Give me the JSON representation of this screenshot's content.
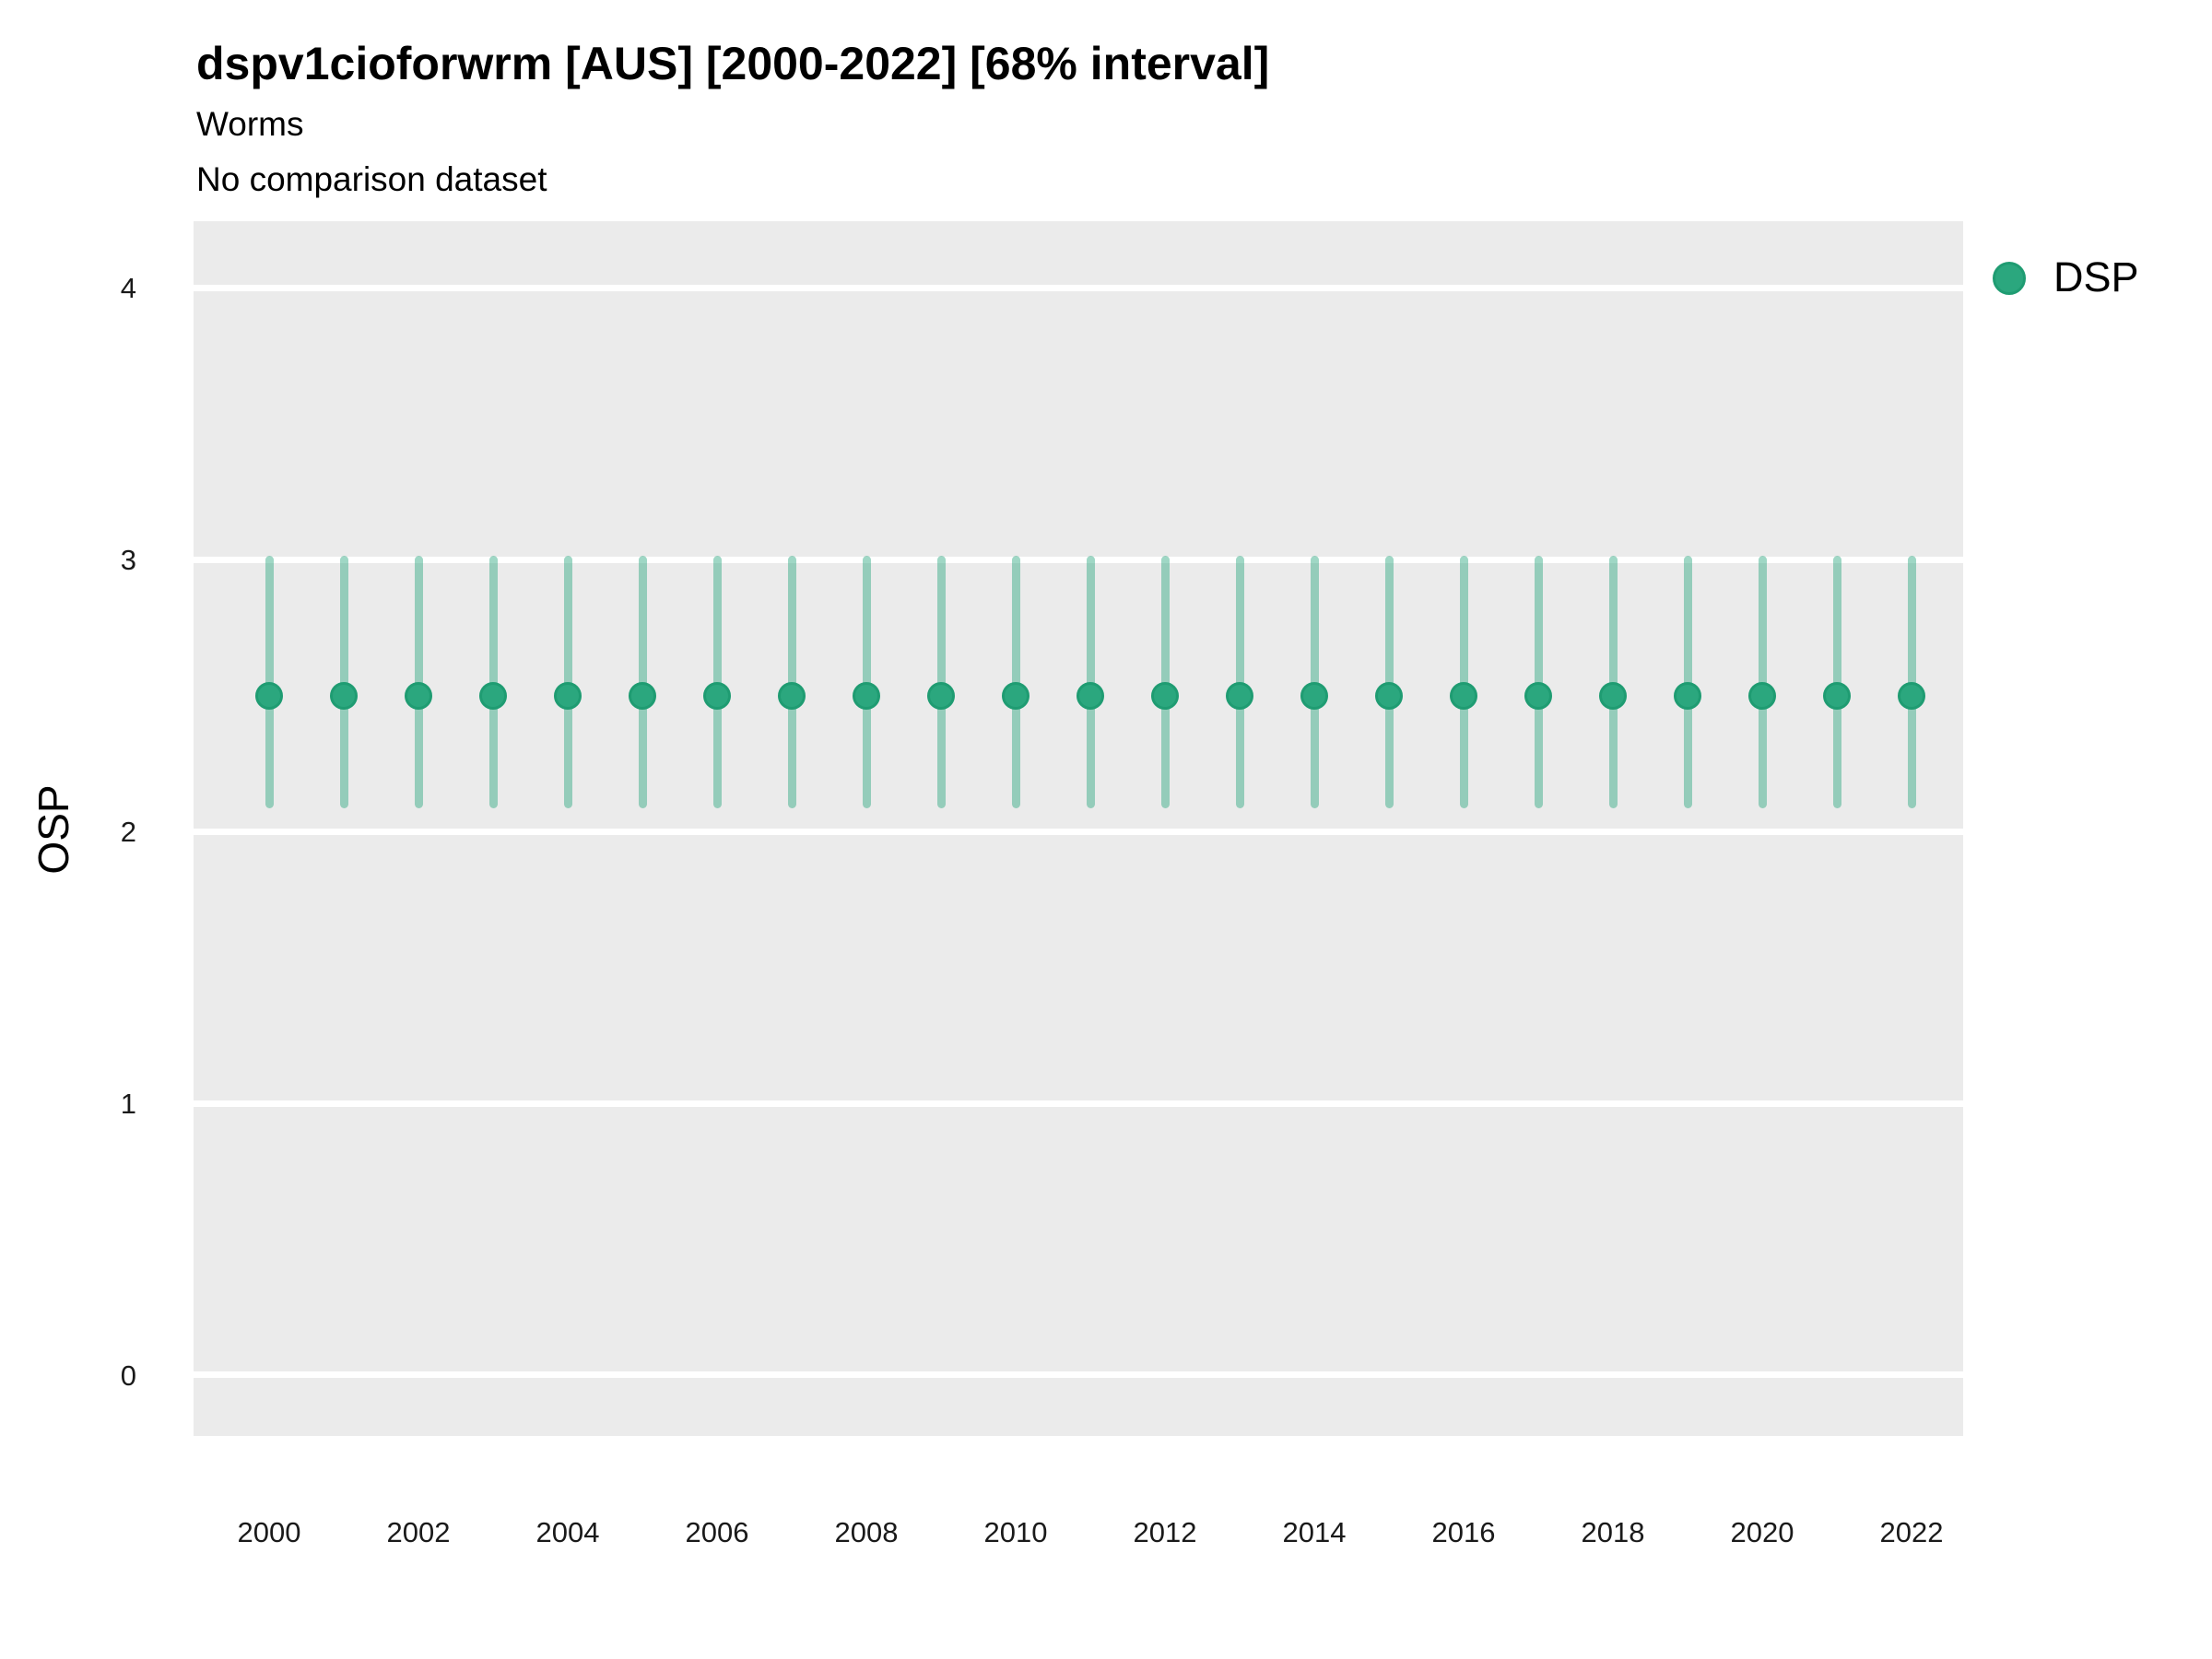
{
  "chart_data": {
    "type": "scatter",
    "variant": "pointrange",
    "title": "dspv1cioforwrm [AUS] [2000-2022] [68% interval]",
    "subtitle": "Worms",
    "note": "No comparison dataset",
    "xlabel": "",
    "ylabel": "OSP",
    "interval_width": "68%",
    "legend": {
      "position": "right",
      "entries": [
        {
          "label": "DSP",
          "marker": "circle-icon"
        }
      ]
    },
    "x": [
      2000,
      2001,
      2002,
      2003,
      2004,
      2005,
      2006,
      2007,
      2008,
      2009,
      2010,
      2011,
      2012,
      2013,
      2014,
      2015,
      2016,
      2017,
      2018,
      2019,
      2020,
      2021,
      2022
    ],
    "series": [
      {
        "name": "DSP",
        "center": [
          2.5,
          2.5,
          2.5,
          2.5,
          2.5,
          2.5,
          2.5,
          2.5,
          2.5,
          2.5,
          2.5,
          2.5,
          2.5,
          2.5,
          2.5,
          2.5,
          2.5,
          2.5,
          2.5,
          2.5,
          2.5,
          2.5,
          2.5
        ],
        "lower": [
          2.1,
          2.1,
          2.1,
          2.1,
          2.1,
          2.1,
          2.1,
          2.1,
          2.1,
          2.1,
          2.1,
          2.1,
          2.1,
          2.1,
          2.1,
          2.1,
          2.1,
          2.1,
          2.1,
          2.1,
          2.1,
          2.1,
          2.1
        ],
        "upper": [
          3.0,
          3.0,
          3.0,
          3.0,
          3.0,
          3.0,
          3.0,
          3.0,
          3.0,
          3.0,
          3.0,
          3.0,
          3.0,
          3.0,
          3.0,
          3.0,
          3.0,
          3.0,
          3.0,
          3.0,
          3.0,
          3.0,
          3.0
        ]
      }
    ],
    "xticks": [
      2000,
      2002,
      2004,
      2006,
      2008,
      2010,
      2012,
      2014,
      2016,
      2018,
      2020,
      2022
    ],
    "yticks": [
      0,
      1,
      2,
      3,
      4
    ],
    "ylim": [
      -0.224,
      4.245
    ],
    "grid": "horizontal-major-only",
    "colors": {
      "point_fill": "#2ba77e",
      "point_border": "#1f9c72",
      "interval": "rgba(42,167,126,0.45)",
      "panel_bg": "#ebebeb",
      "gridline": "#ffffff",
      "text": "#000000"
    }
  }
}
